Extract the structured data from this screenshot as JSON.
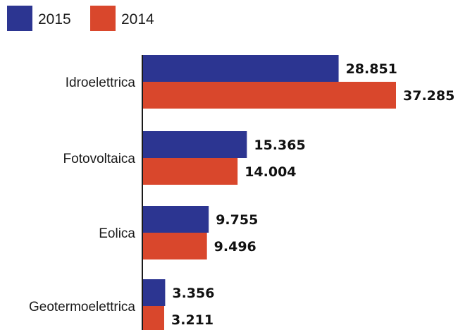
{
  "chart_data": {
    "type": "bar",
    "orientation": "horizontal",
    "categories": [
      "Idroelettrica",
      "Fotovoltaica",
      "Eolica",
      "Geotermoelettrica"
    ],
    "series": [
      {
        "name": "2015",
        "values": [
          28.851,
          15.365,
          9.755,
          3.356
        ],
        "labels": [
          "28.851",
          "15.365",
          "9.755",
          "3.356"
        ]
      },
      {
        "name": "2014",
        "values": [
          37.285,
          14.004,
          9.496,
          3.211
        ],
        "labels": [
          "37.285",
          "14.004",
          "9.496",
          "3.211"
        ]
      }
    ],
    "xlim": [
      0,
      37.285
    ],
    "grid": false,
    "legend_position": "top-left"
  },
  "colors": {
    "2015": "#2c3591",
    "2014": "#d9472c",
    "axis": "#1a1a1a"
  }
}
